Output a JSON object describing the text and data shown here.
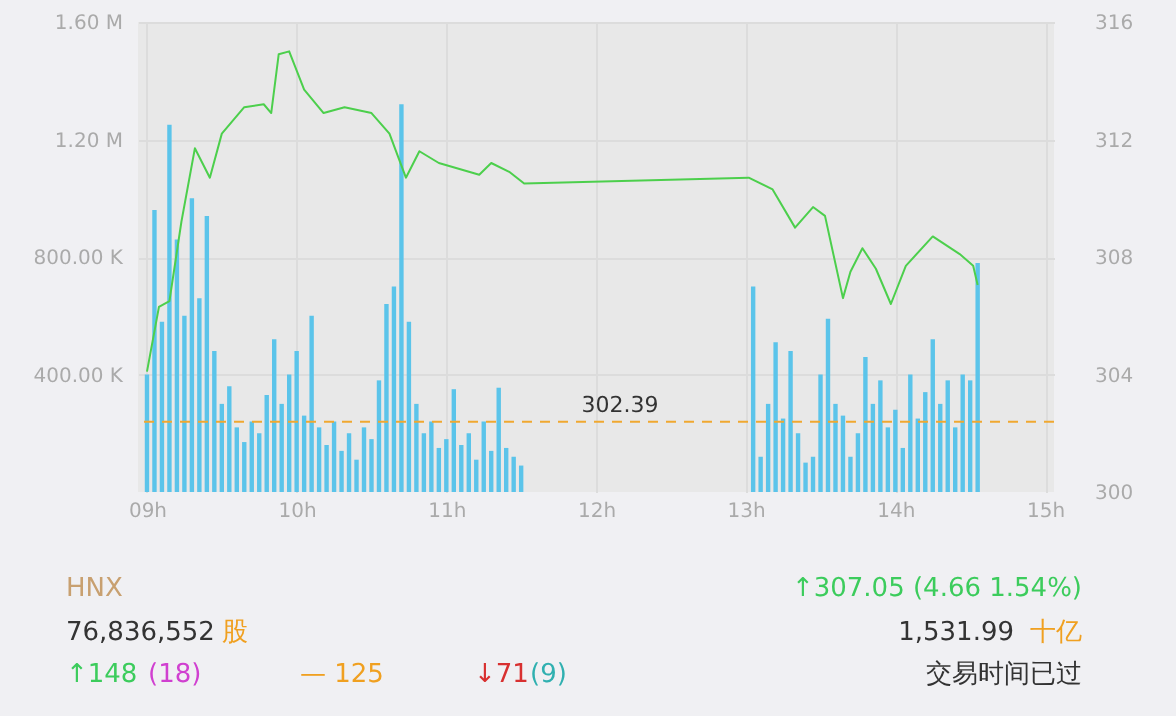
{
  "chart_data": {
    "type": "bar",
    "xlim": [
      8.94,
      15.06
    ],
    "xticks": [
      {
        "value": 9,
        "label": "09h"
      },
      {
        "value": 10,
        "label": "10h"
      },
      {
        "value": 11,
        "label": "11h"
      },
      {
        "value": 12,
        "label": "12h"
      },
      {
        "value": 13,
        "label": "13h"
      },
      {
        "value": 14,
        "label": "14h"
      },
      {
        "value": 15,
        "label": "15h"
      }
    ],
    "ylim": [
      0,
      1600000
    ],
    "yticks": [
      {
        "value": 400000,
        "label": "400.00 K"
      },
      {
        "value": 800000,
        "label": "800.00 K"
      },
      {
        "value": 1200000,
        "label": "1.20 M"
      },
      {
        "value": 1600000,
        "label": "1.60 M"
      }
    ],
    "y2lim": [
      300,
      316
    ],
    "y2ticks": [
      300,
      304,
      308,
      312,
      316
    ],
    "grid": true,
    "series": [
      {
        "color": "#5bc4ea",
        "x": [
          9.0,
          9.05,
          9.1,
          9.15,
          9.2,
          9.25,
          9.3,
          9.35,
          9.4,
          9.45,
          9.5,
          9.55,
          9.6,
          9.65,
          9.7,
          9.75,
          9.8,
          9.85,
          9.9,
          9.95,
          10.0,
          10.05,
          10.1,
          10.15,
          10.2,
          10.25,
          10.3,
          10.35,
          10.4,
          10.45,
          10.5,
          10.55,
          10.6,
          10.65,
          10.7,
          10.75,
          10.8,
          10.85,
          10.9,
          10.95,
          11.0,
          11.05,
          11.1,
          11.15,
          11.2,
          11.25,
          11.3,
          11.35,
          11.4,
          11.45,
          11.5,
          13.05,
          13.1,
          13.15,
          13.2,
          13.25,
          13.3,
          13.35,
          13.4,
          13.45,
          13.5,
          13.55,
          13.6,
          13.65,
          13.7,
          13.75,
          13.8,
          13.85,
          13.9,
          13.95,
          14.0,
          14.05,
          14.1,
          14.15,
          14.2,
          14.25,
          14.3,
          14.35,
          14.4,
          14.45,
          14.5,
          14.55
        ],
        "values": [
          400000,
          960000,
          580000,
          1250000,
          860000,
          600000,
          1000000,
          660000,
          940000,
          480000,
          300000,
          360000,
          220000,
          170000,
          240000,
          200000,
          330000,
          520000,
          300000,
          400000,
          480000,
          260000,
          600000,
          220000,
          160000,
          240000,
          140000,
          200000,
          110000,
          220000,
          180000,
          380000,
          640000,
          700000,
          1320000,
          580000,
          300000,
          200000,
          240000,
          150000,
          180000,
          350000,
          160000,
          200000,
          110000,
          240000,
          140000,
          355000,
          150000,
          120000,
          90000,
          700000,
          120000,
          300000,
          510000,
          250000,
          480000,
          200000,
          100000,
          120000,
          400000,
          590000,
          300000,
          260000,
          120000,
          200000,
          460000,
          300000,
          380000,
          220000,
          280000,
          150000,
          400000,
          250000,
          340000,
          520000,
          300000,
          380000,
          220000,
          400000,
          380000,
          780000
        ]
      },
      {
        "type": "line",
        "axis": "y2",
        "color": "#4ccf4c",
        "x": [
          9.0,
          9.08,
          9.15,
          9.23,
          9.32,
          9.42,
          9.5,
          9.65,
          9.78,
          9.83,
          9.88,
          9.95,
          10.05,
          10.18,
          10.32,
          10.5,
          10.62,
          10.73,
          10.82,
          10.95,
          11.22,
          11.3,
          11.42,
          11.52,
          13.02,
          13.18,
          13.33,
          13.45,
          13.53,
          13.65,
          13.7,
          13.78,
          13.87,
          13.97,
          14.07,
          14.25,
          14.43,
          14.52,
          14.55
        ],
        "values": [
          304.1,
          306.3,
          306.5,
          309.2,
          311.7,
          310.7,
          312.2,
          313.1,
          313.2,
          312.9,
          314.9,
          315.0,
          313.7,
          312.9,
          313.1,
          312.9,
          312.2,
          310.7,
          311.6,
          311.2,
          310.8,
          311.2,
          310.9,
          310.5,
          310.7,
          310.3,
          309.0,
          309.7,
          309.4,
          306.6,
          307.5,
          308.3,
          307.6,
          306.4,
          307.7,
          308.7,
          308.1,
          307.7,
          307.05
        ]
      }
    ],
    "ref_lines": [
      {
        "axis": "y2",
        "value": 302.39,
        "label": "302.39",
        "color": "#f0a830",
        "line_style": "dashed"
      }
    ],
    "annotations": [
      "HNX",
      "76,836,552",
      "股",
      "↑148",
      "(18)",
      "— 125",
      "↓71",
      "(9)",
      "↑307.05 (4.66 1.54%)",
      "1,531.99",
      "十亿",
      "交易时间已过"
    ]
  }
}
